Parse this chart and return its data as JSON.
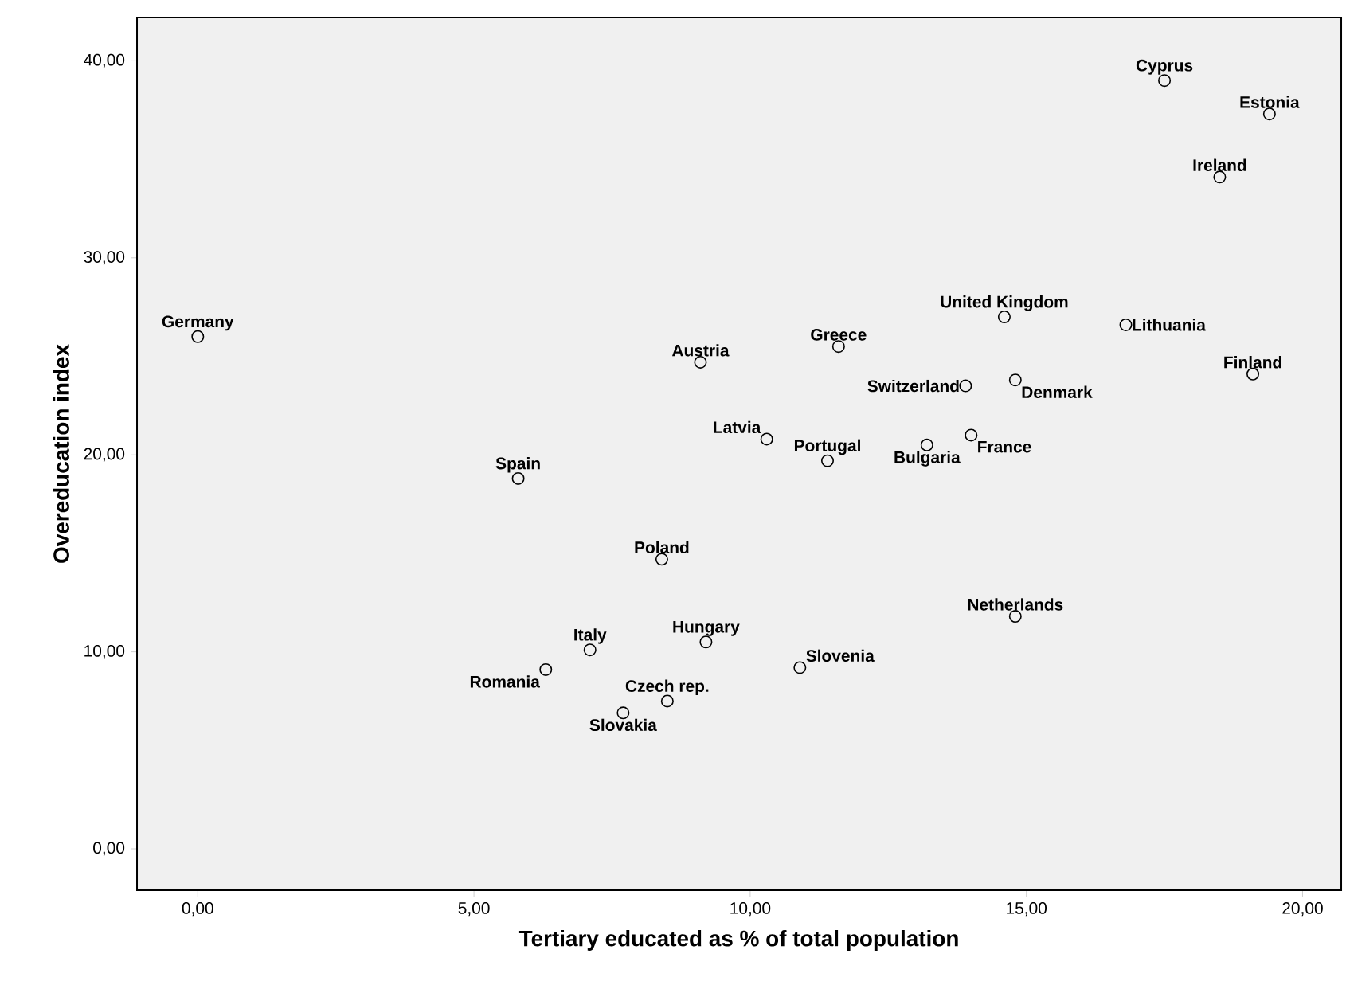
{
  "chart_data": {
    "type": "scatter",
    "xlabel": "Tertiary educated as % of total population",
    "ylabel": "Overeducation index",
    "x": [
      0,
      5.8,
      9.1,
      10.3,
      11.6,
      11.4,
      8.4,
      7.1,
      6.3,
      9.2,
      8.5,
      7.7,
      10.9,
      13.9,
      14.6,
      14.8,
      13.2,
      14.0,
      14.8,
      16.8,
      19.1,
      17.5,
      19.4,
      18.5
    ],
    "values": [
      26.0,
      18.8,
      24.7,
      20.8,
      25.5,
      19.7,
      14.7,
      10.1,
      9.1,
      10.5,
      7.5,
      6.9,
      9.2,
      23.5,
      27.0,
      23.8,
      20.5,
      21.0,
      11.8,
      26.6,
      24.1,
      39.0,
      37.3,
      34.1
    ],
    "color": "#000000",
    "marker": "circle",
    "xlim": [
      -1.1,
      20.7
    ],
    "ylim": [
      -2.1,
      42.2
    ],
    "xticks": [
      {
        "value": 0,
        "label": "0,00"
      },
      {
        "value": 5,
        "label": "5,00"
      },
      {
        "value": 10,
        "label": "10,00"
      },
      {
        "value": 15,
        "label": "15,00"
      },
      {
        "value": 20,
        "label": "20,00"
      }
    ],
    "yticks": [
      {
        "value": 0,
        "label": "0,00"
      },
      {
        "value": 10,
        "label": "10,00"
      },
      {
        "value": 20,
        "label": "20,00"
      },
      {
        "value": 30,
        "label": "30,00"
      },
      {
        "value": 40,
        "label": "40,00"
      }
    ],
    "annotations": [
      {
        "text": "Germany",
        "x": 0,
        "y": 26.0
      },
      {
        "text": "Spain",
        "x": 5.8,
        "y": 18.8
      },
      {
        "text": "Austria",
        "x": 9.1,
        "y": 24.7
      },
      {
        "text": "Latvia",
        "x": 10.3,
        "y": 20.8
      },
      {
        "text": "Greece",
        "x": 11.6,
        "y": 25.5
      },
      {
        "text": "Portugal",
        "x": 11.4,
        "y": 19.7
      },
      {
        "text": "Poland",
        "x": 8.4,
        "y": 14.7
      },
      {
        "text": "Italy",
        "x": 7.1,
        "y": 10.1
      },
      {
        "text": "Romania",
        "x": 6.3,
        "y": 9.1
      },
      {
        "text": "Hungary",
        "x": 9.2,
        "y": 10.5
      },
      {
        "text": "Czech rep.",
        "x": 8.5,
        "y": 7.5
      },
      {
        "text": "Slovakia",
        "x": 7.7,
        "y": 6.9
      },
      {
        "text": "Slovenia",
        "x": 10.9,
        "y": 9.2
      },
      {
        "text": "Switzerland",
        "x": 13.9,
        "y": 23.5
      },
      {
        "text": "United Kingdom",
        "x": 14.6,
        "y": 27.0
      },
      {
        "text": "Denmark",
        "x": 14.8,
        "y": 23.8
      },
      {
        "text": "Bulgaria",
        "x": 13.2,
        "y": 20.5
      },
      {
        "text": "France",
        "x": 14.0,
        "y": 21.0
      },
      {
        "text": "Netherlands",
        "x": 14.8,
        "y": 11.8
      },
      {
        "text": "Lithuania",
        "x": 16.8,
        "y": 26.6
      },
      {
        "text": "Finland",
        "x": 19.1,
        "y": 24.1
      },
      {
        "text": "Cyprus",
        "x": 17.5,
        "y": 39.0
      },
      {
        "text": "Estonia",
        "x": 19.4,
        "y": 37.3
      },
      {
        "text": "Ireland",
        "x": 18.5,
        "y": 34.1
      }
    ]
  }
}
